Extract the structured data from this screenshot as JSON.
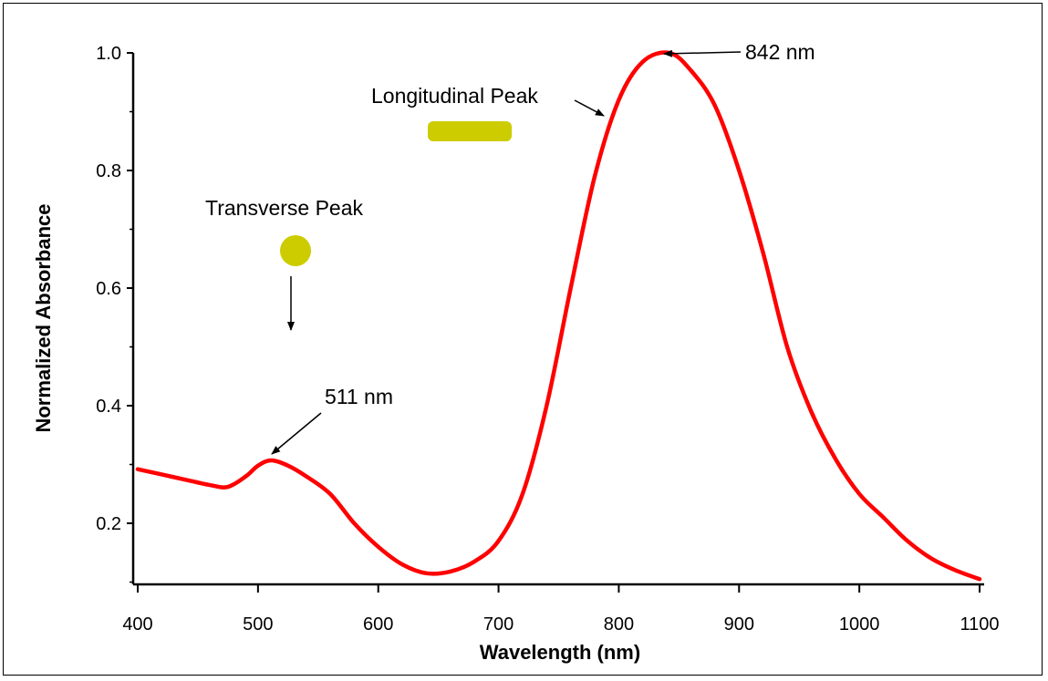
{
  "chart_data": {
    "type": "line",
    "xlabel": "Wavelength (nm)",
    "ylabel": "Normalized Absorbance",
    "xlim": [
      400,
      1100
    ],
    "ylim": [
      0.1,
      1.02
    ],
    "xticks": [
      400,
      500,
      600,
      700,
      800,
      900,
      1000,
      1100
    ],
    "yticks": [
      0.2,
      0.4,
      0.6,
      0.8,
      1.0
    ],
    "ytick_labels": [
      "0.2",
      "0.4",
      "0.6",
      "0.8",
      "1.0"
    ],
    "grid": false,
    "series": [
      {
        "color": "#ff0000",
        "points": [
          [
            400,
            0.292
          ],
          [
            420,
            0.283
          ],
          [
            440,
            0.274
          ],
          [
            460,
            0.265
          ],
          [
            475,
            0.262
          ],
          [
            490,
            0.28
          ],
          [
            500,
            0.298
          ],
          [
            511,
            0.307
          ],
          [
            525,
            0.298
          ],
          [
            540,
            0.28
          ],
          [
            560,
            0.25
          ],
          [
            580,
            0.2
          ],
          [
            600,
            0.16
          ],
          [
            620,
            0.13
          ],
          [
            640,
            0.115
          ],
          [
            660,
            0.118
          ],
          [
            680,
            0.135
          ],
          [
            700,
            0.17
          ],
          [
            720,
            0.25
          ],
          [
            740,
            0.4
          ],
          [
            760,
            0.6
          ],
          [
            780,
            0.79
          ],
          [
            800,
            0.92
          ],
          [
            820,
            0.985
          ],
          [
            842,
            1.0
          ],
          [
            860,
            0.97
          ],
          [
            880,
            0.91
          ],
          [
            900,
            0.8
          ],
          [
            920,
            0.66
          ],
          [
            940,
            0.5
          ],
          [
            960,
            0.39
          ],
          [
            980,
            0.31
          ],
          [
            1000,
            0.25
          ],
          [
            1020,
            0.21
          ],
          [
            1040,
            0.17
          ],
          [
            1060,
            0.14
          ],
          [
            1080,
            0.12
          ],
          [
            1100,
            0.105
          ]
        ]
      }
    ],
    "annotations": [
      {
        "text": "842 nm",
        "x": 842,
        "y": 1.0
      },
      {
        "text": "511 nm",
        "x": 511,
        "y": 0.307
      },
      {
        "text": "Longitudinal Peak"
      },
      {
        "text": "Transverse Peak"
      }
    ],
    "icons": [
      "nanorod-icon",
      "nanosphere-icon"
    ],
    "icon_color": "#cccc00"
  }
}
